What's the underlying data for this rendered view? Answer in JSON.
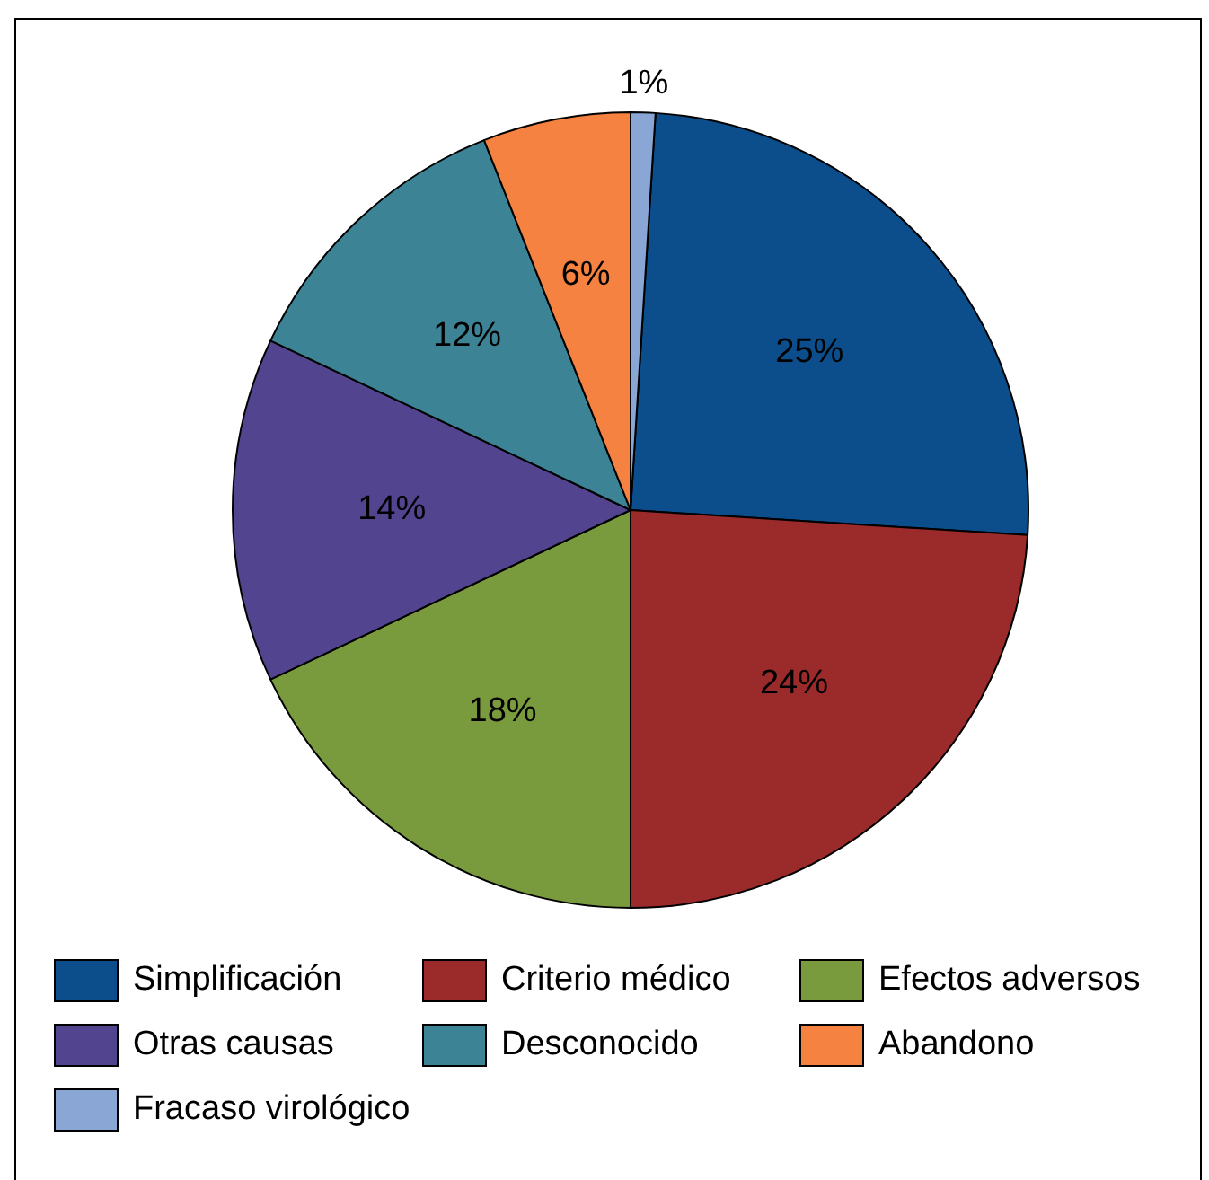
{
  "chart_data": {
    "type": "pie",
    "categories": [
      "Simplificación",
      "Criterio médico",
      "Efectos adversos",
      "Otras causas",
      "Desconocido",
      "Abandono",
      "Fracaso virológico"
    ],
    "values": [
      25,
      24,
      18,
      14,
      12,
      6,
      1
    ],
    "colors": [
      "#0c4d8c",
      "#9b2a2a",
      "#7a9a3e",
      "#53448f",
      "#3c8396",
      "#f58240",
      "#8aa6d4"
    ],
    "value_labels": [
      "25%",
      "24%",
      "18%",
      "14%",
      "12%",
      "6%",
      "1%"
    ],
    "legend": "bottom"
  }
}
